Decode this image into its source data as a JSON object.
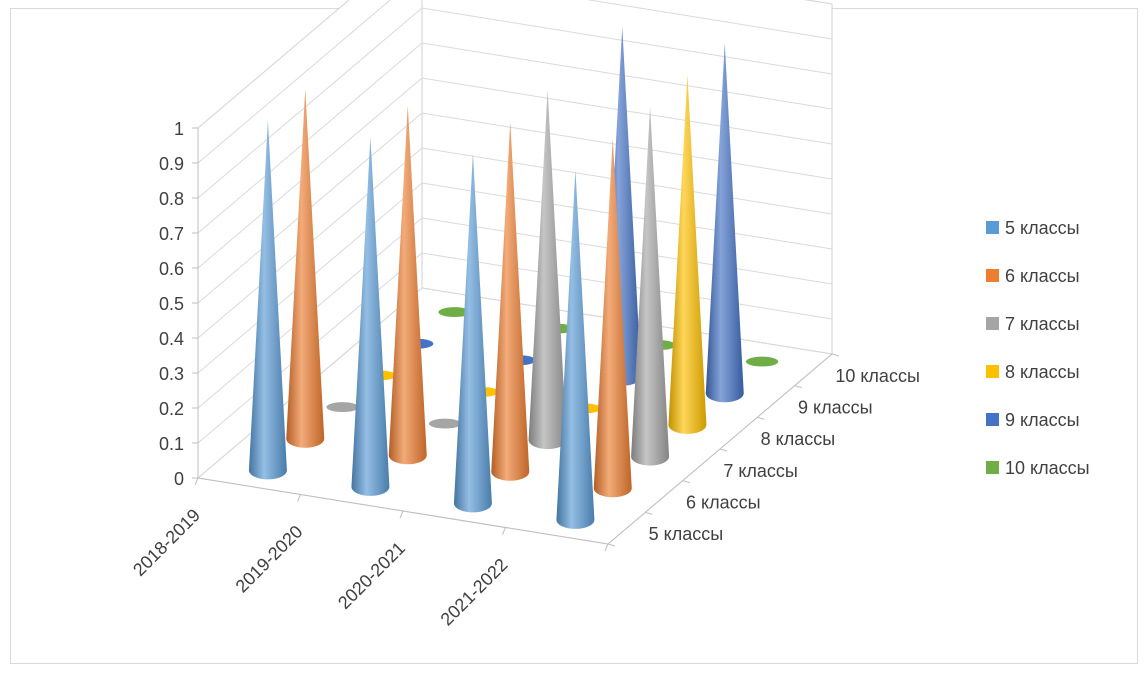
{
  "chart_data": {
    "type": "bar",
    "subtype": "3d-cone",
    "title": "",
    "categories": [
      "2018-2019",
      "2019-2020",
      "2020-2021",
      "2021-2022"
    ],
    "depth_categories": [
      "5 классы",
      "6 классы",
      "7 классы",
      "8 классы",
      "9 классы",
      "10 классы"
    ],
    "series": [
      {
        "name": "5 классы",
        "color": "#5b9bd5",
        "values": [
          1,
          1,
          1,
          1
        ]
      },
      {
        "name": "6 классы",
        "color": "#ed7d31",
        "values": [
          1,
          1,
          1,
          1
        ]
      },
      {
        "name": "7 классы",
        "color": "#a5a5a5",
        "values": [
          0,
          0,
          1,
          1
        ]
      },
      {
        "name": "8 классы",
        "color": "#ffc000",
        "values": [
          0,
          0,
          0,
          1
        ]
      },
      {
        "name": "9 классы",
        "color": "#4472c4",
        "values": [
          0,
          0,
          1,
          1
        ]
      },
      {
        "name": "10 классы",
        "color": "#70ad47",
        "values": [
          0,
          0,
          0,
          0
        ]
      }
    ],
    "ylim": [
      0,
      1
    ],
    "yticks": [
      "0",
      "0.1",
      "0.2",
      "0.3",
      "0.4",
      "0.5",
      "0.6",
      "0.7",
      "0.8",
      "0.9",
      "1"
    ],
    "grid": true,
    "legend_position": "right"
  }
}
